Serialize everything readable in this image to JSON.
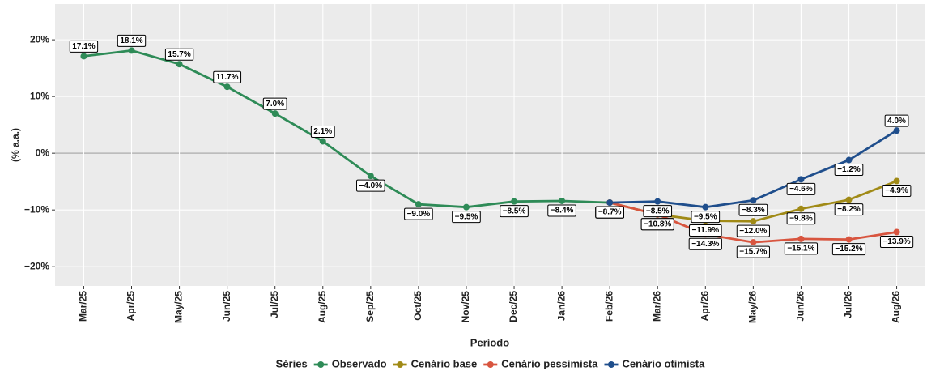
{
  "chart_data": {
    "type": "line",
    "x_label": "Período",
    "y_label": "(% a.a.)",
    "legend_title": "Séries",
    "legend_position": "bottom",
    "categories": [
      "Mar/25",
      "Apr/25",
      "May/25",
      "Jun/25",
      "Jul/25",
      "Aug/25",
      "Sep/25",
      "Oct/25",
      "Nov/25",
      "Dec/25",
      "Jan/26",
      "Feb/26",
      "Mar/26",
      "Apr/26",
      "May/26",
      "Jun/26",
      "Jul/26",
      "Aug/26"
    ],
    "ylim": [
      -23.4,
      26.3
    ],
    "yticks": [
      {
        "value": -20,
        "label": "−20%"
      },
      {
        "value": -10,
        "label": "−10%"
      },
      {
        "value": 0,
        "label": "0%"
      },
      {
        "value": 10,
        "label": "10%"
      },
      {
        "value": 20,
        "label": "20%"
      }
    ],
    "grid": true,
    "zero_line": true,
    "series": [
      {
        "name": "Observado",
        "color": "#2e8b57",
        "values": [
          17.1,
          18.1,
          15.7,
          11.7,
          7.0,
          2.1,
          -4.0,
          -9.0,
          -9.5,
          -8.5,
          -8.4,
          -8.7,
          null,
          null,
          null,
          null,
          null,
          null
        ],
        "value_labels": [
          "17.1%",
          "18.1%",
          "15.7%",
          "11.7%",
          "7.0%",
          "2.1%",
          "−4.0%",
          "−9.0%",
          "−9.5%",
          "−8.5%",
          "−8.4%",
          "−8.7%",
          null,
          null,
          null,
          null,
          null,
          null
        ]
      },
      {
        "name": "Cenário base",
        "color": "#a08a16",
        "values": [
          null,
          null,
          null,
          null,
          null,
          null,
          null,
          null,
          null,
          null,
          null,
          -8.7,
          -10.8,
          -11.9,
          -12.0,
          -9.8,
          -8.2,
          -4.9
        ],
        "value_labels": [
          null,
          null,
          null,
          null,
          null,
          null,
          null,
          null,
          null,
          null,
          null,
          "−8.7%",
          "−10.8%",
          "−11.9%",
          "−12.0%",
          "−9.8%",
          "−8.2%",
          "−4.9%"
        ]
      },
      {
        "name": "Cenário pessimista",
        "color": "#d8553f",
        "values": [
          null,
          null,
          null,
          null,
          null,
          null,
          null,
          null,
          null,
          null,
          null,
          -8.7,
          -10.8,
          -14.3,
          -15.7,
          -15.1,
          -15.2,
          -13.9
        ],
        "value_labels": [
          null,
          null,
          null,
          null,
          null,
          null,
          null,
          null,
          null,
          null,
          null,
          "−8.7%",
          "−10.8%",
          "−14.3%",
          "−15.7%",
          "−15.1%",
          "−15.2%",
          "−13.9%"
        ]
      },
      {
        "name": "Cenário otimista",
        "color": "#1f4e8c",
        "values": [
          null,
          null,
          null,
          null,
          null,
          null,
          null,
          null,
          null,
          null,
          null,
          -8.7,
          -8.5,
          -9.5,
          -8.3,
          -4.6,
          -1.2,
          4.0
        ],
        "value_labels": [
          null,
          null,
          null,
          null,
          null,
          null,
          null,
          null,
          null,
          null,
          null,
          "−8.7%",
          "−8.5%",
          "−9.5%",
          "−8.3%",
          "−4.6%",
          "−1.2%",
          "4.0%"
        ]
      }
    ]
  }
}
